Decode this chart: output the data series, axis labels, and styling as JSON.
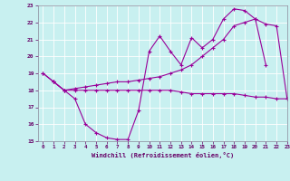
{
  "xlabel": "Windchill (Refroidissement éolien,°C)",
  "bg_color": "#c8f0f0",
  "line_color": "#990099",
  "grid_color": "#ffffff",
  "xlim": [
    -0.5,
    23
  ],
  "ylim": [
    15,
    23
  ],
  "xticks": [
    0,
    1,
    2,
    3,
    4,
    5,
    6,
    7,
    8,
    9,
    10,
    11,
    12,
    13,
    14,
    15,
    16,
    17,
    18,
    19,
    20,
    21,
    22,
    23
  ],
  "yticks": [
    15,
    16,
    17,
    18,
    19,
    20,
    21,
    22,
    23
  ],
  "line1_x": [
    0,
    1,
    2,
    3,
    4,
    5,
    6,
    7,
    8,
    9,
    10,
    11,
    12,
    13,
    14,
    15,
    16,
    17,
    18,
    19,
    20,
    21
  ],
  "line1_y": [
    19.0,
    18.5,
    18.0,
    17.5,
    16.0,
    15.5,
    15.2,
    15.1,
    15.1,
    16.8,
    20.3,
    21.2,
    20.3,
    19.5,
    21.1,
    20.5,
    21.0,
    22.2,
    22.8,
    22.7,
    22.2,
    19.5
  ],
  "line2_x": [
    0,
    1,
    2,
    3,
    4,
    5,
    6,
    7,
    8,
    9,
    10,
    11,
    12,
    13,
    14,
    15,
    16,
    17,
    18,
    19,
    20,
    21,
    22,
    23
  ],
  "line2_y": [
    19.0,
    18.5,
    18.0,
    18.1,
    18.2,
    18.3,
    18.4,
    18.5,
    18.5,
    18.6,
    18.7,
    18.8,
    19.0,
    19.2,
    19.5,
    20.0,
    20.5,
    21.0,
    21.8,
    22.0,
    22.2,
    21.9,
    21.8,
    17.5
  ],
  "line3_x": [
    1,
    2,
    3,
    4,
    5,
    6,
    7,
    8,
    9,
    10,
    11,
    12,
    13,
    14,
    15,
    16,
    17,
    18,
    19,
    20,
    21,
    22,
    23
  ],
  "line3_y": [
    18.5,
    18.0,
    18.0,
    18.0,
    18.0,
    18.0,
    18.0,
    18.0,
    18.0,
    18.0,
    18.0,
    18.0,
    17.9,
    17.8,
    17.8,
    17.8,
    17.8,
    17.8,
    17.7,
    17.6,
    17.6,
    17.5,
    17.5
  ]
}
